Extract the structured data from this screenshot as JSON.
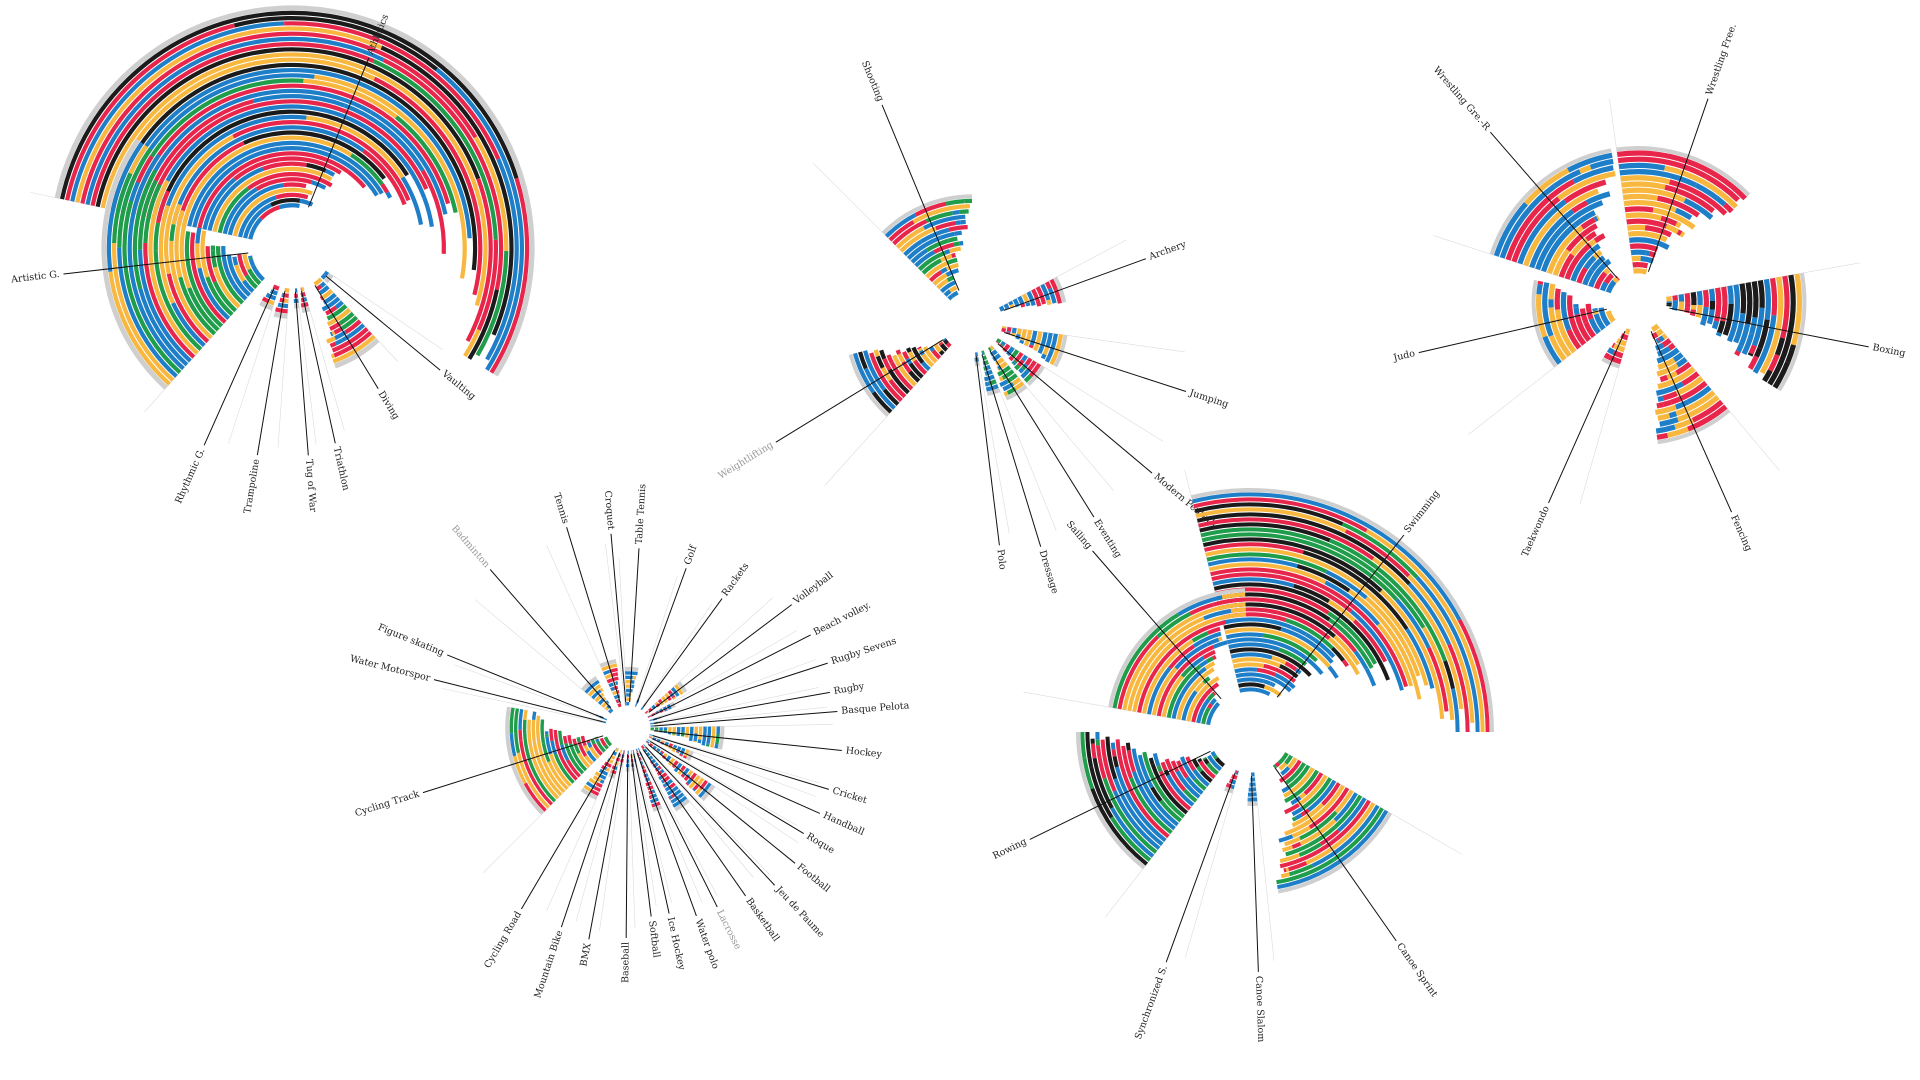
{
  "colors": {
    "gold": "#f8b840",
    "blue": "#1e7fc8",
    "red": "#e8264b",
    "green": "#1f9d4b",
    "black": "#1b1b1b",
    "rim": "#cfcfcf",
    "guide": "#dcdcdc"
  },
  "chart_data": [
    {
      "type": "radial-stacked-bar",
      "group": "athletics-gymnastics",
      "sports": [
        {
          "name": "Athletics",
          "bars": 38,
          "palette": [
            "blue",
            "blue",
            "red",
            "red",
            "black",
            "green",
            "gold"
          ],
          "muted": false
        },
        {
          "name": "Vaulting",
          "bars": 1,
          "palette": [
            "blue"
          ],
          "muted": false
        },
        {
          "name": "Diving",
          "bars": 16,
          "palette": [
            "gold",
            "red",
            "blue",
            "green"
          ],
          "muted": false
        },
        {
          "name": "Triathlon",
          "bars": 4,
          "palette": [
            "blue",
            "red",
            "gold"
          ],
          "muted": false
        },
        {
          "name": "Tug of War",
          "bars": 3,
          "palette": [
            "blue",
            "red"
          ],
          "muted": false
        },
        {
          "name": "Trampoline",
          "bars": 5,
          "palette": [
            "blue",
            "red",
            "gold"
          ],
          "muted": false
        },
        {
          "name": "Rhythmic G.",
          "bars": 4,
          "palette": [
            "blue",
            "red",
            "gold"
          ],
          "muted": false
        },
        {
          "name": "Artistic G.",
          "bars": 28,
          "palette": [
            "gold",
            "blue",
            "red",
            "green"
          ],
          "muted": false
        }
      ]
    },
    {
      "type": "radial-stacked-bar",
      "group": "shooting-equestrian",
      "sports": [
        {
          "name": "Shooting",
          "bars": 18,
          "palette": [
            "blue",
            "red",
            "gold",
            "green"
          ],
          "muted": false
        },
        {
          "name": "Archery",
          "bars": 12,
          "palette": [
            "gold",
            "red",
            "blue"
          ],
          "muted": false
        },
        {
          "name": "Jumping",
          "bars": 12,
          "palette": [
            "blue",
            "red",
            "gold"
          ],
          "muted": false
        },
        {
          "name": "Modern Pentath.",
          "bars": 10,
          "palette": [
            "blue",
            "green",
            "red"
          ],
          "muted": false
        },
        {
          "name": "Eventing",
          "bars": 10,
          "palette": [
            "blue",
            "green",
            "gold"
          ],
          "muted": false
        },
        {
          "name": "Dressage",
          "bars": 8,
          "palette": [
            "blue",
            "green"
          ],
          "muted": false
        },
        {
          "name": "Polo",
          "bars": 2,
          "palette": [
            "blue"
          ],
          "muted": false
        },
        {
          "name": "Weightlifting",
          "bars": 18,
          "palette": [
            "gold",
            "blue",
            "red",
            "black"
          ],
          "muted": true
        }
      ]
    },
    {
      "type": "radial-stacked-bar",
      "group": "combat",
      "sports": [
        {
          "name": "Wrestling Free.",
          "bars": 20,
          "palette": [
            "gold",
            "blue",
            "red"
          ],
          "muted": false
        },
        {
          "name": "Boxing",
          "bars": 22,
          "palette": [
            "red",
            "blue",
            "black",
            "gold"
          ],
          "muted": false
        },
        {
          "name": "Fencing",
          "bars": 18,
          "palette": [
            "blue",
            "red",
            "gold"
          ],
          "muted": false
        },
        {
          "name": "Taekwondo",
          "bars": 6,
          "palette": [
            "gold",
            "red",
            "blue"
          ],
          "muted": false
        },
        {
          "name": "Judo",
          "bars": 12,
          "palette": [
            "gold",
            "blue",
            "red"
          ],
          "muted": false
        },
        {
          "name": "Wrestling Gre.-R",
          "bars": 20,
          "palette": [
            "blue",
            "gold",
            "red"
          ],
          "muted": false
        }
      ]
    },
    {
      "type": "radial-stacked-bar",
      "group": "ball-and-team",
      "sports": [
        {
          "name": "Croquet",
          "bars": 1,
          "palette": [
            "blue"
          ],
          "muted": false
        },
        {
          "name": "Table Tennis",
          "bars": 8,
          "palette": [
            "gold",
            "blue"
          ],
          "muted": false
        },
        {
          "name": "Golf",
          "bars": 2,
          "palette": [
            "blue"
          ],
          "muted": false
        },
        {
          "name": "Rackets",
          "bars": 1,
          "palette": [
            "blue"
          ],
          "muted": false
        },
        {
          "name": "Volleyball",
          "bars": 10,
          "palette": [
            "red",
            "blue",
            "gold"
          ],
          "muted": false
        },
        {
          "name": "Beach volley.",
          "bars": 6,
          "palette": [
            "blue",
            "red"
          ],
          "muted": false
        },
        {
          "name": "Rugby Sevens",
          "bars": 2,
          "palette": [
            "blue"
          ],
          "muted": false
        },
        {
          "name": "Rugby",
          "bars": 2,
          "palette": [
            "blue",
            "gold"
          ],
          "muted": false
        },
        {
          "name": "Basque Pelota",
          "bars": 1,
          "palette": [
            "blue"
          ],
          "muted": false
        },
        {
          "name": "Hockey",
          "bars": 16,
          "palette": [
            "blue",
            "green",
            "gold"
          ],
          "muted": false
        },
        {
          "name": "Cricket",
          "bars": 1,
          "palette": [
            "blue"
          ],
          "muted": false
        },
        {
          "name": "Handball",
          "bars": 10,
          "palette": [
            "blue",
            "gold",
            "red"
          ],
          "muted": false
        },
        {
          "name": "Roque",
          "bars": 1,
          "palette": [
            "blue"
          ],
          "muted": false
        },
        {
          "name": "Football",
          "bars": 18,
          "palette": [
            "blue",
            "red",
            "gold"
          ],
          "muted": false
        },
        {
          "name": "Jeu de Paume",
          "bars": 1,
          "palette": [
            "blue"
          ],
          "muted": false
        },
        {
          "name": "Basketball",
          "bars": 16,
          "palette": [
            "blue",
            "red"
          ],
          "muted": false
        },
        {
          "name": "Lacrosse",
          "bars": 2,
          "palette": [
            "blue"
          ],
          "muted": true
        },
        {
          "name": "Water polo",
          "bars": 14,
          "palette": [
            "blue",
            "red"
          ],
          "muted": false
        },
        {
          "name": "Ice Hockey",
          "bars": 3,
          "palette": [
            "blue"
          ],
          "muted": false
        },
        {
          "name": "Softball",
          "bars": 4,
          "palette": [
            "blue",
            "red",
            "gold"
          ],
          "muted": false
        },
        {
          "name": "Baseball",
          "bars": 4,
          "palette": [
            "red",
            "blue"
          ],
          "muted": false
        },
        {
          "name": "BMX",
          "bars": 3,
          "palette": [
            "blue",
            "red"
          ],
          "muted": false
        },
        {
          "name": "Mountain Bike",
          "bars": 6,
          "palette": [
            "blue",
            "red",
            "gold"
          ],
          "muted": false
        },
        {
          "name": "Cycling Road",
          "bars": 12,
          "palette": [
            "blue",
            "red",
            "gold"
          ],
          "muted": false
        },
        {
          "name": "Cycling Track",
          "bars": 22,
          "palette": [
            "blue",
            "red",
            "green",
            "gold"
          ],
          "muted": false
        },
        {
          "name": "Water Motorspor",
          "bars": 1,
          "palette": [
            "blue"
          ],
          "muted": false
        },
        {
          "name": "Figure skating",
          "bars": 2,
          "palette": [
            "blue"
          ],
          "muted": false
        },
        {
          "name": "Badminton",
          "bars": 8,
          "palette": [
            "gold",
            "blue"
          ],
          "muted": true
        },
        {
          "name": "Tennis",
          "bars": 10,
          "palette": [
            "red",
            "blue",
            "gold"
          ],
          "muted": false
        }
      ]
    },
    {
      "type": "radial-stacked-bar",
      "group": "water-sports",
      "sports": [
        {
          "name": "Swimming",
          "bars": 40,
          "palette": [
            "blue",
            "red",
            "blue",
            "green",
            "gold",
            "black"
          ],
          "muted": false
        },
        {
          "name": "Canoe Sprint",
          "bars": 24,
          "palette": [
            "blue",
            "green",
            "red",
            "gold"
          ],
          "muted": false
        },
        {
          "name": "Canoe Slalom",
          "bars": 6,
          "palette": [
            "blue"
          ],
          "muted": false
        },
        {
          "name": "Synchronized S.",
          "bars": 4,
          "palette": [
            "blue",
            "red"
          ],
          "muted": false
        },
        {
          "name": "Rowing",
          "bars": 26,
          "palette": [
            "blue",
            "green",
            "red",
            "black"
          ],
          "muted": false
        },
        {
          "name": "Sailing",
          "bars": 20,
          "palette": [
            "blue",
            "red",
            "green",
            "gold"
          ],
          "muted": false
        }
      ]
    }
  ]
}
